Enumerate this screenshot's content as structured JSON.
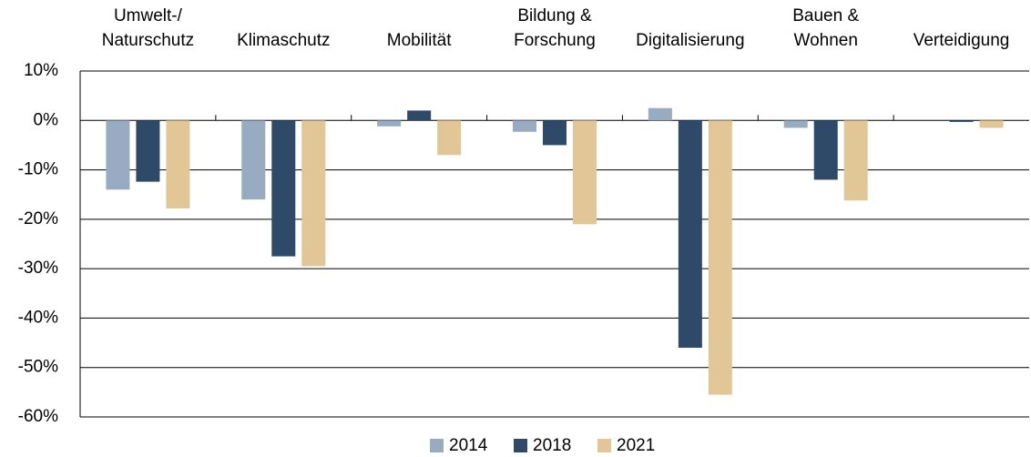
{
  "chart_data": {
    "type": "bar",
    "categories": [
      [
        "Umwelt-/",
        "Naturschutz"
      ],
      [
        "Klimaschutz"
      ],
      [
        "Mobilität"
      ],
      [
        "Bildung &",
        "Forschung"
      ],
      [
        "Digitalisierung"
      ],
      [
        "Bauen &",
        "Wohnen"
      ],
      [
        "Verteidigung"
      ]
    ],
    "series": [
      {
        "name": "2014",
        "color": "#97abc1",
        "values": [
          -14,
          -16,
          -1.2,
          -2.3,
          2.5,
          -1.5,
          0
        ]
      },
      {
        "name": "2018",
        "color": "#2e4a68",
        "values": [
          -12.4,
          -27.5,
          2,
          -5,
          -46,
          -12,
          -0.3
        ]
      },
      {
        "name": "2021",
        "color": "#e2c796",
        "values": [
          -17.8,
          -29.5,
          -7,
          -21,
          -55.5,
          -16.2,
          -1.5
        ]
      }
    ],
    "ylim": [
      -60,
      10
    ],
    "yticks": [
      {
        "value": 10,
        "label": "10%"
      },
      {
        "value": 0,
        "label": "0%"
      },
      {
        "value": -10,
        "label": "-10%"
      },
      {
        "value": -20,
        "label": "-20%"
      },
      {
        "value": -30,
        "label": "-30%"
      },
      {
        "value": -40,
        "label": "-40%"
      },
      {
        "value": -50,
        "label": "-50%"
      },
      {
        "value": -60,
        "label": "-60%"
      }
    ],
    "grid": true,
    "legend": "bottom"
  }
}
